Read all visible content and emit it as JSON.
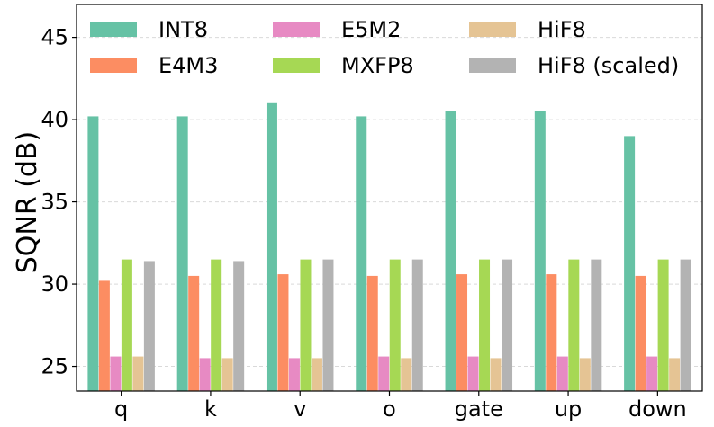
{
  "chart_data": {
    "type": "bar",
    "title": "",
    "xlabel": "",
    "ylabel": "SQNR (dB)",
    "ylim": [
      23.5,
      47
    ],
    "yticks": [
      25,
      30,
      35,
      40,
      45
    ],
    "grid": "horizontal",
    "legend_position": "top",
    "categories": [
      "q",
      "k",
      "v",
      "o",
      "gate",
      "up",
      "down"
    ],
    "series": [
      {
        "name": "INT8",
        "color": "#66c2a5",
        "values": [
          40.2,
          40.2,
          41.0,
          40.2,
          40.5,
          40.5,
          39.0
        ]
      },
      {
        "name": "E4M3",
        "color": "#fc8d62",
        "values": [
          30.2,
          30.5,
          30.6,
          30.5,
          30.6,
          30.6,
          30.5
        ]
      },
      {
        "name": "E5M2",
        "color": "#e78ac3",
        "values": [
          25.6,
          25.5,
          25.5,
          25.6,
          25.6,
          25.6,
          25.6
        ]
      },
      {
        "name": "MXFP8",
        "color": "#a6d854",
        "values": [
          31.5,
          31.5,
          31.5,
          31.5,
          31.5,
          31.5,
          31.5
        ]
      },
      {
        "name": "HiF8",
        "color": "#e5c494",
        "values": [
          25.6,
          25.5,
          25.5,
          25.5,
          25.5,
          25.5,
          25.5
        ]
      },
      {
        "name": "HiF8 (scaled)",
        "color": "#b3b3b3",
        "values": [
          31.4,
          31.4,
          31.5,
          31.5,
          31.5,
          31.5,
          31.5
        ]
      }
    ]
  }
}
